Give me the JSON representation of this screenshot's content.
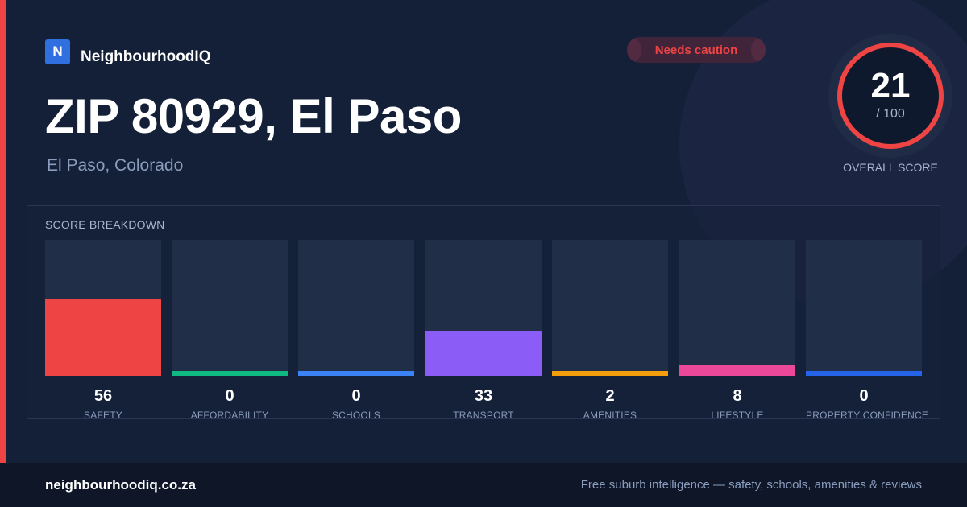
{
  "brand": {
    "logo_letter": "N",
    "name": "NeighbourhoodIQ"
  },
  "status_badge": {
    "label": "Needs caution",
    "color": "#ef4444"
  },
  "header": {
    "title": "ZIP 80929, El Paso",
    "subtitle": "El Paso, Colorado"
  },
  "overall_score": {
    "value": "21",
    "denominator": "/ 100",
    "caption": "OVERALL SCORE",
    "fraction": 0.21,
    "ring_color": "#ef4444"
  },
  "breakdown": {
    "title": "SCORE BREAKDOWN",
    "items": [
      {
        "value": "56",
        "label": "SAFETY",
        "color": "#ef4444"
      },
      {
        "value": "0",
        "label": "AFFORDABILITY",
        "color": "#10b981"
      },
      {
        "value": "0",
        "label": "SCHOOLS",
        "color": "#3b82f6"
      },
      {
        "value": "33",
        "label": "TRANSPORT",
        "color": "#8b5cf6"
      },
      {
        "value": "2",
        "label": "AMENITIES",
        "color": "#f59e0b"
      },
      {
        "value": "8",
        "label": "LIFESTYLE",
        "color": "#ec4899"
      },
      {
        "value": "0",
        "label": "PROPERTY CONFIDENCE",
        "color": "#2563eb"
      }
    ]
  },
  "footer": {
    "url": "neighbourhoodiq.co.za",
    "tagline": "Free suburb intelligence — safety, schools, amenities & reviews"
  }
}
